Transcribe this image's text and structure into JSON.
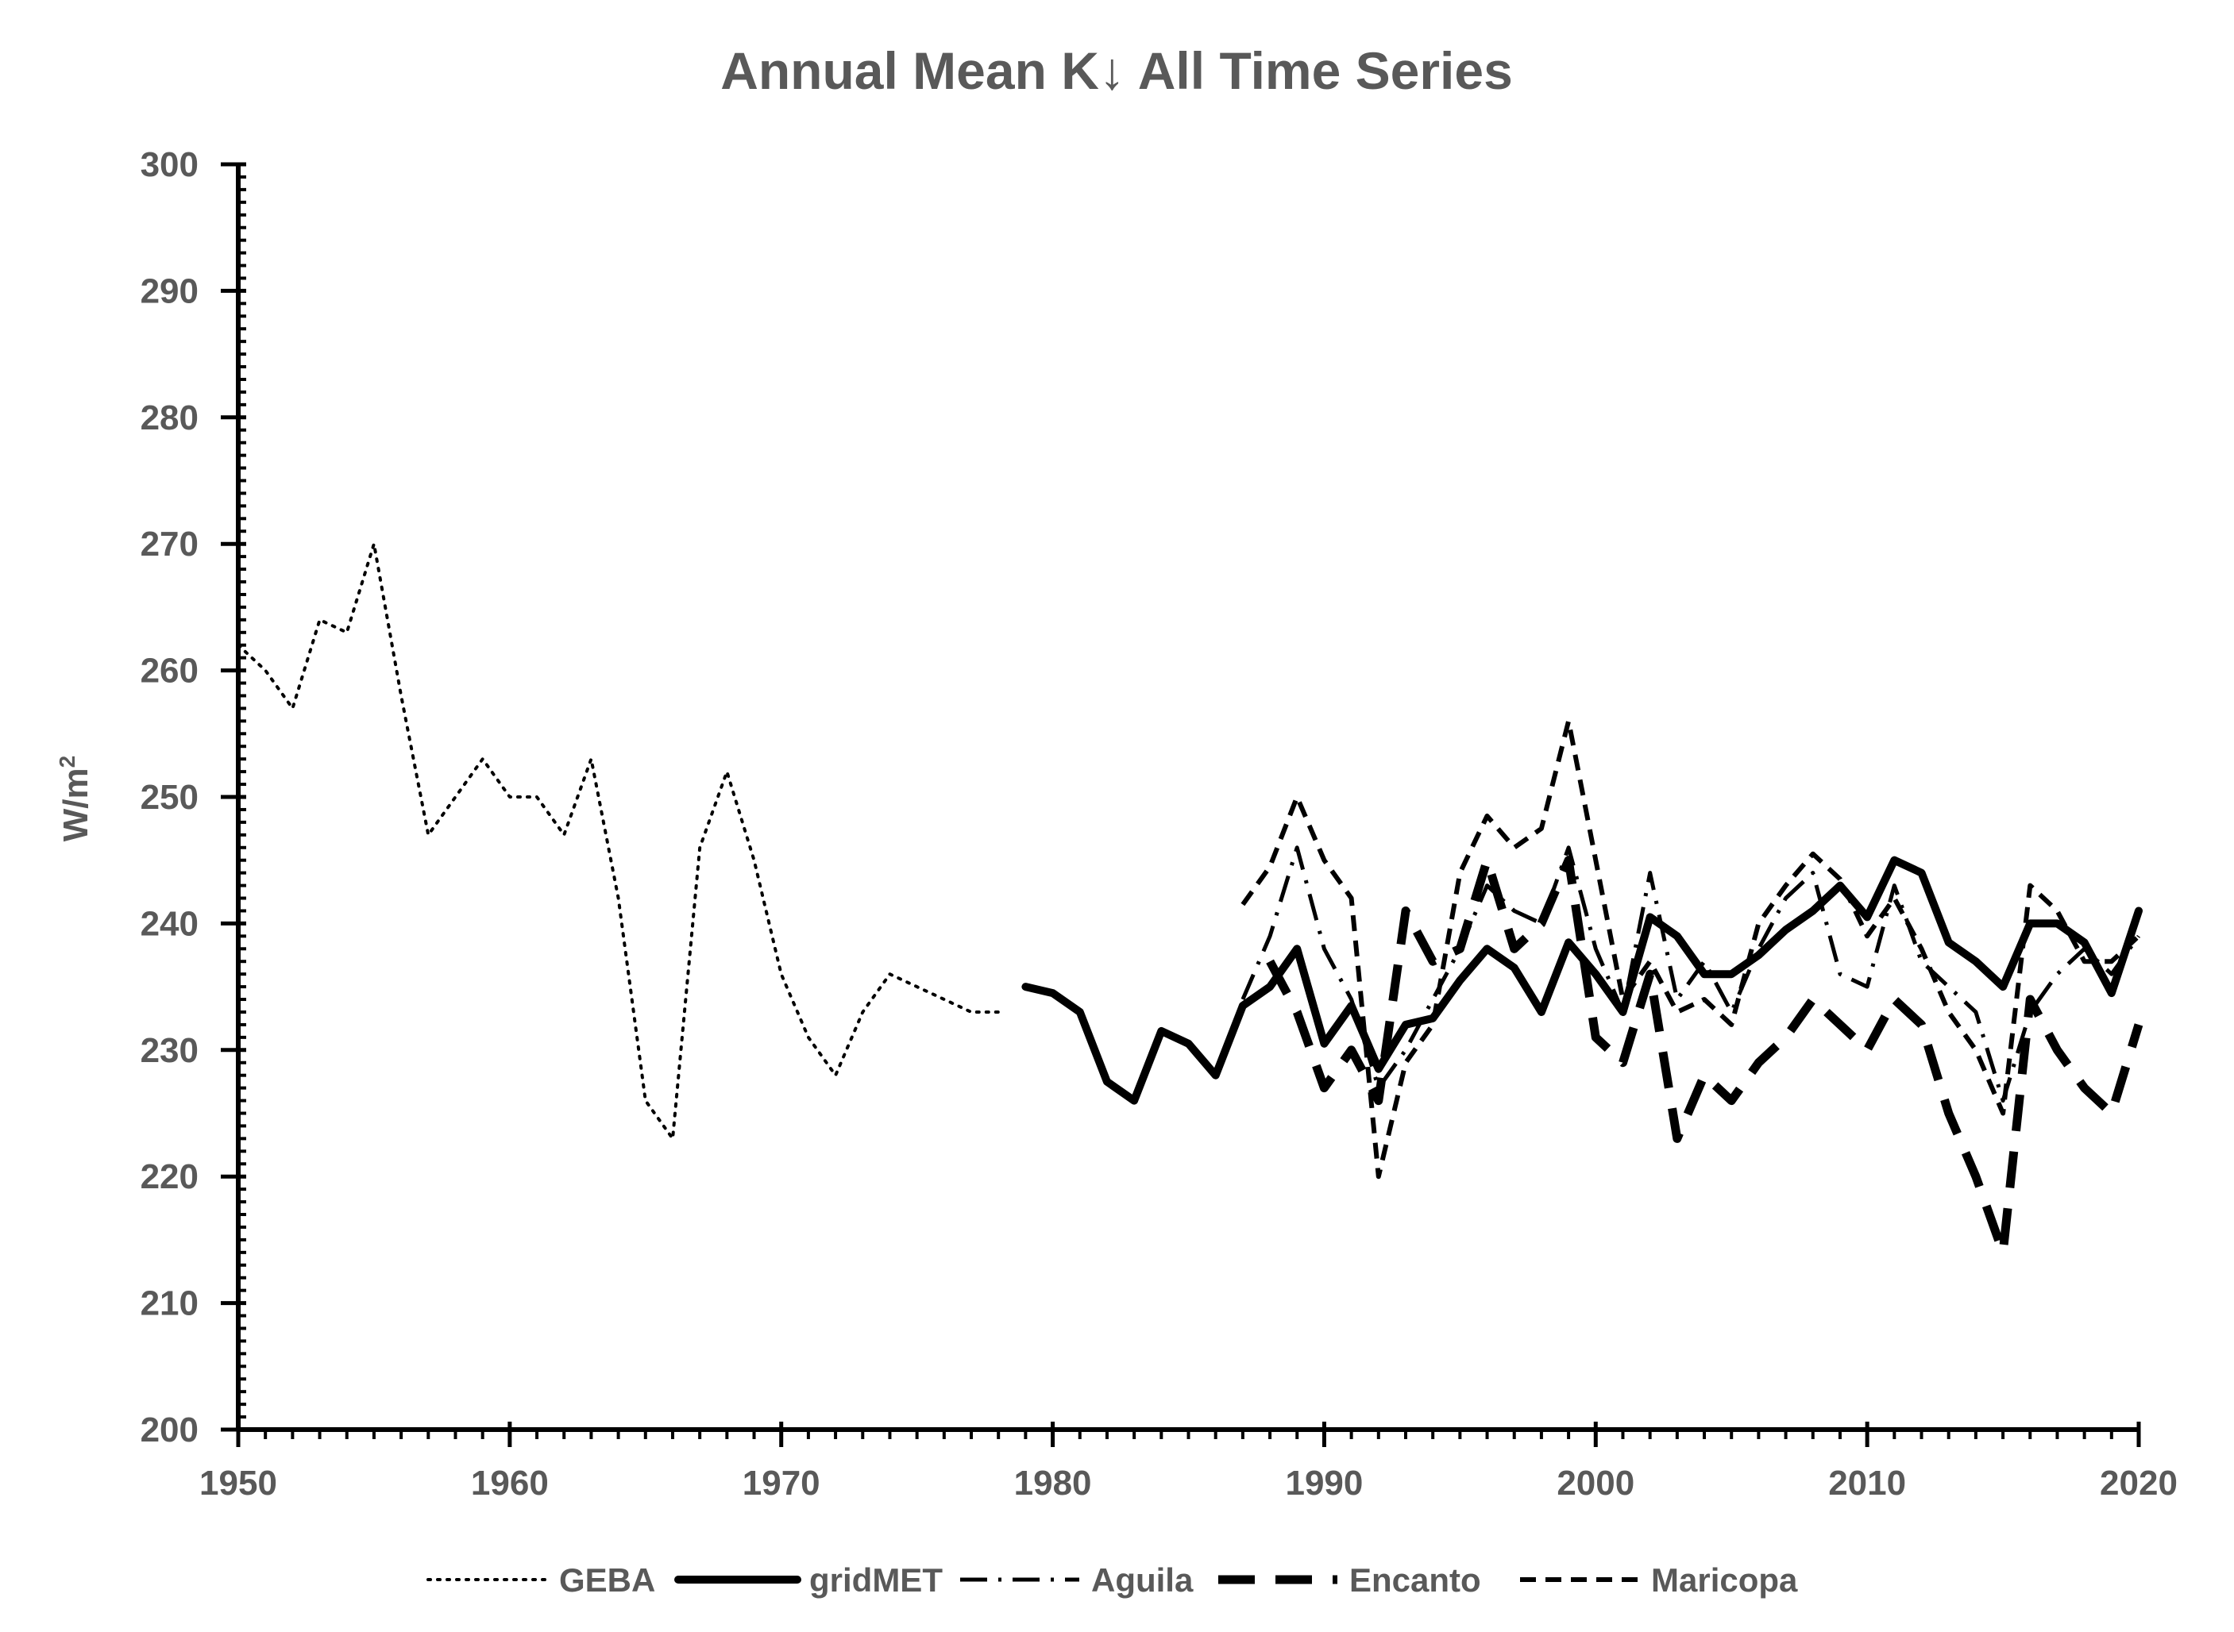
{
  "chart_data": {
    "type": "line",
    "title": "Annual Mean K↓ All Time Series",
    "xlabel": "",
    "ylabel": "W/m",
    "ylabel_superscript": "2",
    "xlim": [
      1950,
      2020
    ],
    "ylim": [
      200,
      300
    ],
    "x_ticks": [
      1950,
      1960,
      1970,
      1980,
      1990,
      2000,
      2010,
      2020
    ],
    "y_ticks": [
      200,
      210,
      220,
      230,
      240,
      250,
      260,
      270,
      280,
      290,
      300
    ],
    "grid": false,
    "legend_position": "bottom",
    "series": [
      {
        "name": "GEBA",
        "style": "dotted",
        "x": [
          1950,
          1951,
          1952,
          1953,
          1954,
          1955,
          1956,
          1957,
          1958,
          1959,
          1960,
          1961,
          1962,
          1963,
          1964,
          1965,
          1966,
          1967,
          1968,
          1969,
          1970,
          1971,
          1972,
          1973,
          1974,
          1975,
          1976,
          1977,
          1978
        ],
        "y": [
          262,
          260,
          257,
          264,
          263,
          270,
          258,
          247,
          250,
          253,
          250,
          250,
          247,
          253,
          242,
          226,
          223,
          246,
          252,
          245,
          236,
          231,
          228,
          233,
          236,
          235,
          234,
          233,
          233
        ]
      },
      {
        "name": "gridMET",
        "style": "solid",
        "x": [
          1979,
          1980,
          1981,
          1982,
          1983,
          1984,
          1985,
          1986,
          1987,
          1988,
          1989,
          1990,
          1991,
          1992,
          1993,
          1994,
          1995,
          1996,
          1997,
          1998,
          1999,
          2000,
          2001,
          2002,
          2003,
          2004,
          2005,
          2006,
          2007,
          2008,
          2009,
          2010,
          2011,
          2012,
          2013,
          2014,
          2015,
          2016,
          2017,
          2018,
          2019,
          2020
        ],
        "y": [
          235,
          234.5,
          233,
          227.5,
          226,
          231.5,
          230.5,
          228,
          233.5,
          235,
          238,
          230.5,
          233.5,
          228.5,
          232,
          232.5,
          235.5,
          238,
          236.5,
          233,
          238.5,
          236,
          233,
          240.5,
          239,
          236,
          236,
          237.5,
          239.5,
          241,
          243,
          240.5,
          245,
          244,
          238.5,
          237,
          235,
          240,
          240,
          238.5,
          234.5,
          241
        ]
      },
      {
        "name": "Aguila",
        "style": "dash-dot",
        "x": [
          1987,
          1988,
          1989,
          1990,
          1991,
          1992,
          1993,
          1994,
          1995,
          1996,
          1997,
          1998,
          1999,
          2000,
          2001,
          2002,
          2003,
          2004,
          2005,
          2006,
          2007,
          2008,
          2009,
          2010,
          2011,
          2012,
          2013,
          2014,
          2015,
          2016,
          2017,
          2018,
          2019,
          2020
        ],
        "y": [
          234,
          239,
          246,
          238,
          234,
          227,
          230,
          234,
          238,
          243,
          241,
          240,
          246,
          238,
          233,
          244,
          234,
          237,
          233,
          238,
          242,
          244,
          236,
          235,
          243,
          237,
          235,
          233,
          226,
          233,
          236,
          238,
          236,
          239
        ]
      },
      {
        "name": "Encanto",
        "style": "long-dash",
        "x": [
          1988,
          1989,
          1990,
          1991,
          1992,
          1993,
          1994,
          1995,
          1996,
          1997,
          1998,
          1999,
          2000,
          2001,
          2002,
          2003,
          2004,
          2005,
          2006,
          2007,
          2008,
          2009,
          2010,
          2011,
          2012,
          2013,
          2014,
          2015,
          2016,
          2017,
          2018,
          2019,
          2020
        ],
        "y": [
          237,
          233,
          227,
          230,
          226,
          241,
          237,
          238,
          245,
          238,
          240,
          245,
          231,
          229,
          236,
          223,
          228,
          226,
          229,
          231,
          234,
          232,
          230,
          234,
          232,
          225,
          220,
          214,
          234,
          230,
          227,
          225,
          232
        ]
      },
      {
        "name": "Maricopa",
        "style": "dashed",
        "x": [
          1987,
          1988,
          1989,
          1990,
          1991,
          1992,
          1993,
          1994,
          1995,
          1996,
          1997,
          1998,
          1999,
          2000,
          2001,
          2002,
          2003,
          2004,
          2005,
          2006,
          2007,
          2008,
          2009,
          2010,
          2011,
          2012,
          2013,
          2014,
          2015,
          2016,
          2017,
          2018,
          2019,
          2020
        ],
        "y": [
          241.5,
          244.5,
          250,
          245,
          242,
          220,
          229,
          232,
          244,
          248.5,
          246,
          247.5,
          256,
          245,
          234,
          237,
          233,
          234,
          232,
          240,
          243,
          245.5,
          243.5,
          239,
          242,
          238,
          233,
          230,
          225,
          243,
          241,
          237,
          237,
          239
        ]
      }
    ]
  }
}
